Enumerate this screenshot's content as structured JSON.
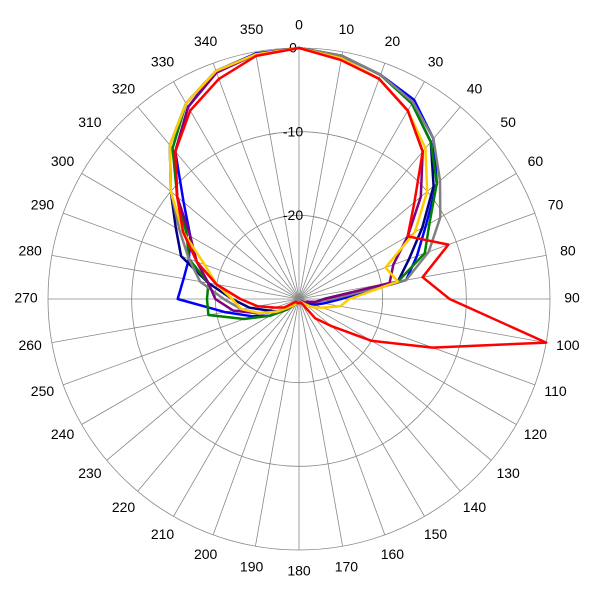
{
  "chart_data": {
    "type": "polar",
    "rlim": [
      -30,
      0
    ],
    "rticks": [
      0,
      -10,
      -20
    ],
    "thetaticks": [
      0,
      10,
      20,
      30,
      40,
      50,
      60,
      70,
      80,
      90,
      100,
      110,
      120,
      130,
      140,
      150,
      160,
      170,
      180,
      190,
      200,
      210,
      220,
      230,
      240,
      250,
      260,
      270,
      280,
      290,
      300,
      310,
      320,
      330,
      340,
      350
    ],
    "theta": [
      0,
      10,
      20,
      30,
      40,
      50,
      60,
      70,
      80,
      90,
      100,
      110,
      120,
      130,
      140,
      150,
      160,
      170,
      180,
      190,
      200,
      210,
      220,
      230,
      240,
      250,
      260,
      270,
      280,
      290,
      300,
      310,
      320,
      330,
      340,
      350
    ],
    "series": [
      {
        "color": "#0000ff",
        "values": [
          0,
          -0.5,
          -1.5,
          -2.5,
          -5,
          -8.5,
          -12.5,
          -15,
          -17,
          -25,
          -27,
          -28,
          -29,
          -29,
          -29.5,
          -29.5,
          -29.5,
          -29.5,
          -29.5,
          -29.5,
          -29.5,
          -29.5,
          -29,
          -28,
          -26,
          -24,
          -21,
          -15.5,
          -16,
          -16,
          -15,
          -12,
          -7,
          -3.5,
          -1,
          -0.2
        ]
      },
      {
        "color": "#000080",
        "values": [
          0,
          -0.5,
          -1.5,
          -3,
          -5.5,
          -9,
          -13,
          -16,
          -18,
          -27,
          -28,
          -28.5,
          -29,
          -29.5,
          -29.5,
          -29.5,
          -29.5,
          -29.5,
          -29.5,
          -29.5,
          -29.5,
          -29.5,
          -29,
          -28,
          -27,
          -26,
          -24,
          -22,
          -19,
          -15,
          -13,
          -10,
          -6,
          -3,
          -1,
          -0.3
        ]
      },
      {
        "color": "#008000",
        "values": [
          0,
          -0.5,
          -1.5,
          -3,
          -5.5,
          -8.5,
          -12,
          -14,
          -18,
          -27,
          -28,
          -29,
          -29,
          -29.5,
          -29.5,
          -29.5,
          -29.5,
          -29.5,
          -29.5,
          -29.5,
          -29.5,
          -29.5,
          -29,
          -28,
          -26,
          -23,
          -19,
          -19,
          -19,
          -16,
          -14.5,
          -11,
          -6.5,
          -3,
          -1,
          -0.3
        ]
      },
      {
        "color": "#808080",
        "values": [
          0,
          -0.5,
          -1.5,
          -2.8,
          -5,
          -8,
          -10.5,
          -13.5,
          -17,
          -26,
          -28,
          -29,
          -29,
          -29.5,
          -29.5,
          -29.5,
          -29.5,
          -29.5,
          -29.5,
          -29.5,
          -29.5,
          -29.5,
          -29,
          -28.5,
          -27,
          -25,
          -23,
          -21,
          -18,
          -16,
          -13.5,
          -10,
          -6,
          -3,
          -1,
          -0.3
        ]
      },
      {
        "color": "#800080",
        "values": [
          0,
          -0.8,
          -2,
          -4,
          -7,
          -11,
          -15,
          -18,
          -19,
          -27,
          -28,
          -29,
          -29,
          -29.5,
          -29.5,
          -29.5,
          -29.5,
          -29.5,
          -29.5,
          -29.5,
          -29.5,
          -29.5,
          -29,
          -28.5,
          -27,
          -25,
          -22,
          -20,
          -19,
          -17,
          -15,
          -11,
          -7,
          -3.5,
          -1.2,
          -0.3
        ]
      },
      {
        "color": "#ffcc00",
        "values": [
          0,
          -0.8,
          -2,
          -4,
          -6.5,
          -10,
          -14,
          -19,
          -18,
          -24,
          -25,
          -27,
          -28,
          -29,
          -29.5,
          -29.5,
          -29.5,
          -29.5,
          -29.5,
          -29.5,
          -29.5,
          -29.5,
          -29,
          -28.5,
          -27,
          -25,
          -23,
          -22,
          -20,
          -18,
          -14,
          -10,
          -6,
          -3,
          -1,
          -0.3
        ]
      },
      {
        "color": "#ff0000",
        "values": [
          0,
          -1,
          -2,
          -4,
          -7,
          -12,
          -15,
          -11,
          -15,
          -12,
          0,
          -13,
          -20,
          -25,
          -27,
          -29.5,
          -29.5,
          -29.5,
          -29.5,
          -29.5,
          -29.5,
          -29.5,
          -29.5,
          -29.5,
          -28,
          -27,
          -25,
          -23,
          -20,
          -17,
          -14,
          -11,
          -7,
          -4,
          -2,
          -0.5
        ]
      }
    ]
  }
}
